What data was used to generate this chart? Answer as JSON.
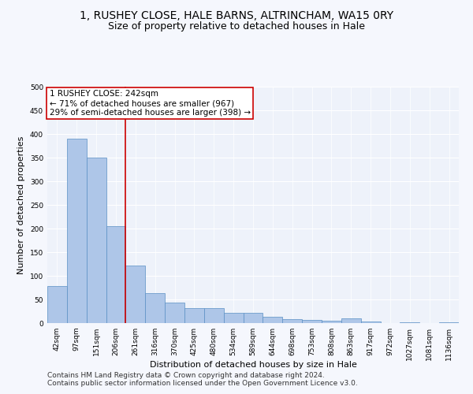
{
  "title": "1, RUSHEY CLOSE, HALE BARNS, ALTRINCHAM, WA15 0RY",
  "subtitle": "Size of property relative to detached houses in Hale",
  "xlabel": "Distribution of detached houses by size in Hale",
  "ylabel": "Number of detached properties",
  "categories": [
    "42sqm",
    "97sqm",
    "151sqm",
    "206sqm",
    "261sqm",
    "316sqm",
    "370sqm",
    "425sqm",
    "480sqm",
    "534sqm",
    "589sqm",
    "644sqm",
    "698sqm",
    "753sqm",
    "808sqm",
    "863sqm",
    "917sqm",
    "972sqm",
    "1027sqm",
    "1081sqm",
    "1136sqm"
  ],
  "values": [
    79,
    390,
    350,
    205,
    122,
    63,
    44,
    32,
    32,
    22,
    22,
    13,
    8,
    7,
    5,
    10,
    3,
    0,
    1,
    0,
    1
  ],
  "bar_color": "#aec6e8",
  "bar_edge_color": "#5a8fc4",
  "property_line_x": 3.5,
  "property_label": "1 RUSHEY CLOSE: 242sqm",
  "annotation_line1": "← 71% of detached houses are smaller (967)",
  "annotation_line2": "29% of semi-detached houses are larger (398) →",
  "annotation_box_color": "#ffffff",
  "annotation_box_edgecolor": "#cc0000",
  "property_line_color": "#cc0000",
  "ylim": [
    0,
    500
  ],
  "yticks": [
    0,
    50,
    100,
    150,
    200,
    250,
    300,
    350,
    400,
    450,
    500
  ],
  "footer1": "Contains HM Land Registry data © Crown copyright and database right 2024.",
  "footer2": "Contains public sector information licensed under the Open Government Licence v3.0.",
  "background_color": "#eef2fa",
  "fig_background_color": "#f5f7fd",
  "grid_color": "#ffffff",
  "title_fontsize": 10,
  "subtitle_fontsize": 9,
  "axis_label_fontsize": 8,
  "tick_fontsize": 6.5,
  "annotation_fontsize": 7.5,
  "footer_fontsize": 6.5
}
